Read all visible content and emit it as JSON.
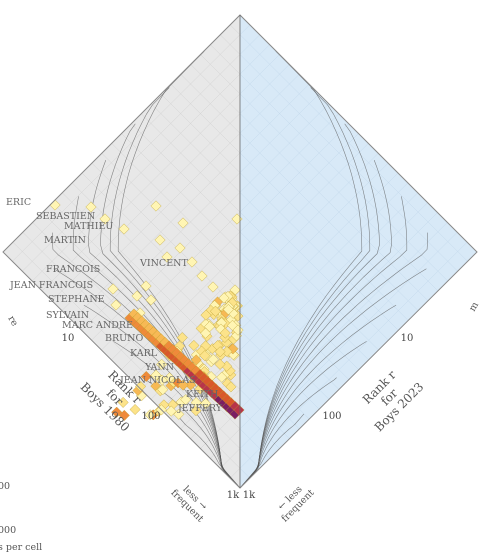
{
  "chart_data": {
    "type": "heatmap",
    "title": "",
    "left_axis": {
      "label_lines": [
        "Rank r",
        "for",
        "Boys 1980"
      ],
      "ticks": [
        "10",
        "100",
        "1k"
      ],
      "direction_label": [
        "less →",
        "frequent"
      ]
    },
    "right_axis": {
      "label_lines": [
        "Rank r",
        "for",
        "Boys 2023"
      ],
      "ticks": [
        "10",
        "100",
        "1k"
      ],
      "direction_label": [
        "← less",
        "frequent"
      ]
    },
    "colors": {
      "left_region": "#e8e8e8",
      "right_region": "#d8e9f7",
      "grid": "#cfcfcf",
      "contour": "#555555",
      "outline": "#888888"
    },
    "color_scale": [
      "#fff5b3",
      "#fce38a",
      "#f7b955",
      "#ef8a3a",
      "#d9582b",
      "#b8344a",
      "#7b1e63"
    ],
    "annotated_names": [
      {
        "name": "ERIC",
        "r1980": 1,
        "r2023": 1000
      },
      {
        "name": "SEBASTIEN",
        "r1980": 2,
        "r2023": 1000
      },
      {
        "name": "MATHIEU",
        "r1980": 3,
        "r2023": 1000
      },
      {
        "name": "MARTIN",
        "r1980": 3.5,
        "r2023": 600
      },
      {
        "name": "FRANCOIS",
        "r1980": 5,
        "r2023": 400
      },
      {
        "name": "VINCENT",
        "r1980": 7,
        "r2023": 100
      },
      {
        "name": "JEAN FRANCOIS",
        "r1980": 6,
        "r2023": 1000
      },
      {
        "name": "STEPHANE",
        "r1980": 8,
        "r2023": 700
      },
      {
        "name": "SYLVAIN",
        "r1980": 11,
        "r2023": 700
      },
      {
        "name": "MARC ANDRE",
        "r1980": 12,
        "r2023": 900
      },
      {
        "name": "BRUNO",
        "r1980": 18,
        "r2023": 500
      },
      {
        "name": "KARL",
        "r1980": 25,
        "r2023": 400
      },
      {
        "name": "YANN",
        "r1980": 40,
        "r2023": 400
      },
      {
        "name": "JEAN NICOLAS",
        "r1980": 50,
        "r2023": 900
      },
      {
        "name": "KEITH",
        "r1980": 90,
        "r2023": 500
      },
      {
        "name": "JEFFERY",
        "r1980": 120,
        "r2023": 600
      }
    ],
    "legend_fragments": [
      "re",
      "00",
      "000",
      "s per cell",
      "m"
    ]
  }
}
